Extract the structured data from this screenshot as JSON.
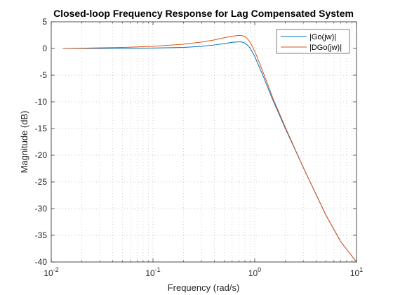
{
  "chart_data": {
    "type": "line",
    "title": "Closed-loop Frequency Response for Lag Compensated System",
    "xlabel": "Frequency (rad/s)",
    "ylabel": "Magnitude (dB)",
    "xscale": "log",
    "xlim": [
      0.01,
      10
    ],
    "ylim": [
      -40,
      5
    ],
    "grid": "on (major and minor, dotted)",
    "legend_position": "top-right",
    "x_ticks": [
      {
        "value": 0.01,
        "base": "10",
        "exp": "-2"
      },
      {
        "value": 0.1,
        "base": "10",
        "exp": "-1"
      },
      {
        "value": 1,
        "base": "10",
        "exp": "0"
      },
      {
        "value": 10,
        "base": "10",
        "exp": "1"
      }
    ],
    "y_ticks": [
      "5",
      "0",
      "-5",
      "-10",
      "-15",
      "-20",
      "-25",
      "-30",
      "-35",
      "-40"
    ],
    "y_tick_values": [
      5,
      0,
      -5,
      -10,
      -15,
      -20,
      -25,
      -30,
      -35,
      -40
    ],
    "series": [
      {
        "name": "|Go(jw)|",
        "color": "#0072BD",
        "x": [
          0.013,
          0.02,
          0.05,
          0.1,
          0.2,
          0.3,
          0.4,
          0.5,
          0.6,
          0.7,
          0.75,
          0.8,
          0.85,
          0.9,
          1.0,
          1.2,
          1.5,
          2.0,
          3.0,
          5.0,
          7.0,
          10.0
        ],
        "y": [
          0.0,
          0.0,
          0.02,
          0.08,
          0.2,
          0.4,
          0.65,
          0.9,
          1.15,
          1.25,
          1.2,
          1.0,
          0.6,
          0.1,
          -1.5,
          -5.0,
          -9.6,
          -15.0,
          -22.3,
          -31.2,
          -36.2,
          -40.0
        ]
      },
      {
        "name": "|DGo(jw)|",
        "color": "#D95319",
        "x": [
          0.013,
          0.02,
          0.05,
          0.1,
          0.2,
          0.3,
          0.4,
          0.5,
          0.6,
          0.7,
          0.75,
          0.8,
          0.85,
          0.9,
          1.0,
          1.2,
          1.5,
          2.0,
          3.0,
          5.0,
          7.0,
          10.0
        ],
        "y": [
          0.0,
          0.05,
          0.2,
          0.4,
          0.8,
          1.2,
          1.6,
          2.0,
          2.3,
          2.45,
          2.4,
          2.2,
          1.8,
          1.2,
          -0.5,
          -4.3,
          -9.2,
          -14.8,
          -22.3,
          -31.2,
          -36.2,
          -40.0
        ]
      }
    ]
  }
}
